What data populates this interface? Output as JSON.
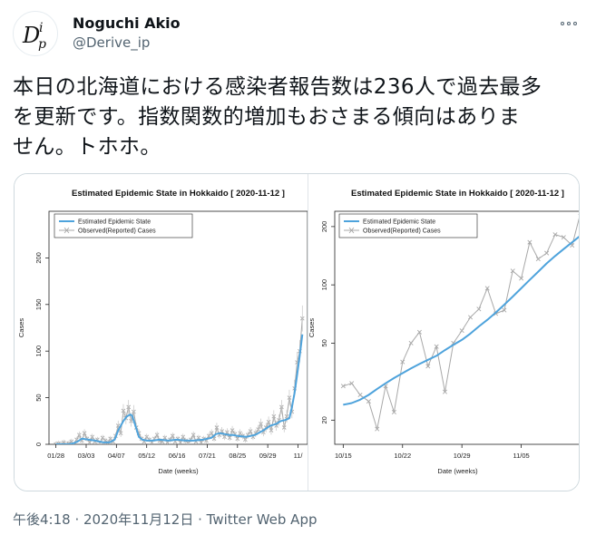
{
  "author": {
    "name": "Noguchi Akio",
    "handle": "@Derive_ip",
    "avatar_icon": "dp-logo-icon"
  },
  "tweet": {
    "text_line1": "本日の北海道における感染者報告数は236人で過去最多",
    "text_line2": "を更新です。指数関数的増加もおさまる傾向はありま",
    "text_line3": "せん。トホホ。"
  },
  "meta": {
    "time": "午後4:18",
    "sep1": " · ",
    "date": "2020年11月12日",
    "sep2": " · ",
    "source": "Twitter Web App"
  },
  "colors": {
    "estimated": "#4ea3dc",
    "observed": "#a8a8a8"
  },
  "chart_data": [
    {
      "type": "line",
      "title": "Estimated Epidemic State in Hokkaido [ 2020-11-12 ]",
      "xlabel": "Date (weeks)",
      "ylabel": "Cases",
      "y_scale": "linear",
      "ylim": [
        0,
        250
      ],
      "yticks": [
        0,
        50,
        100,
        150,
        200
      ],
      "xticks": [
        {
          "label": "01/28",
          "x": 0
        },
        {
          "label": "03/03",
          "x": 35
        },
        {
          "label": "04/07",
          "x": 70
        },
        {
          "label": "05/12",
          "x": 105
        },
        {
          "label": "06/16",
          "x": 140
        },
        {
          "label": "07/21",
          "x": 175
        },
        {
          "label": "08/25",
          "x": 210
        },
        {
          "label": "09/29",
          "x": 245
        },
        {
          "label": "11/",
          "x": 280
        }
      ],
      "xlim": [
        -8,
        291
      ],
      "legend": [
        "Estimated Epidemic State",
        "Observed(Reported) Cases"
      ],
      "legend_position": "top-left",
      "series": [
        {
          "name": "Estimated Epidemic State",
          "x": [
            0,
            8,
            15,
            20,
            25,
            30,
            38,
            45,
            50,
            55,
            62,
            68,
            72,
            78,
            82,
            86,
            88,
            92,
            96,
            100,
            105,
            112,
            120,
            130,
            140,
            150,
            160,
            170,
            180,
            185,
            190,
            195,
            200,
            205,
            210,
            220,
            230,
            240,
            248,
            255,
            260,
            265,
            270,
            273,
            276,
            279,
            282,
            285
          ],
          "y": [
            0,
            0,
            0,
            1,
            3,
            6,
            5,
            4,
            3,
            2,
            2,
            5,
            15,
            25,
            30,
            32,
            31,
            20,
            8,
            5,
            4,
            4,
            5,
            4,
            5,
            4,
            4,
            5,
            7,
            11,
            12,
            11,
            10,
            10,
            9,
            8,
            10,
            15,
            20,
            22,
            25,
            26,
            28,
            40,
            55,
            75,
            95,
            118
          ]
        },
        {
          "name": "Observed(Reported) Cases",
          "x": [
            0,
            3,
            6,
            9,
            12,
            15,
            18,
            21,
            24,
            27,
            30,
            33,
            36,
            39,
            42,
            45,
            48,
            51,
            54,
            57,
            60,
            63,
            66,
            69,
            72,
            75,
            78,
            81,
            84,
            87,
            90,
            93,
            96,
            99,
            102,
            105,
            108,
            111,
            114,
            117,
            120,
            123,
            126,
            129,
            132,
            135,
            138,
            141,
            144,
            147,
            150,
            153,
            156,
            159,
            162,
            165,
            168,
            171,
            174,
            177,
            180,
            183,
            186,
            189,
            192,
            195,
            198,
            201,
            204,
            207,
            210,
            213,
            216,
            219,
            222,
            225,
            228,
            231,
            234,
            237,
            240,
            243,
            246,
            249,
            252,
            255,
            258,
            261,
            264,
            267,
            270,
            273,
            276,
            279,
            282,
            285
          ],
          "y": [
            0,
            1,
            0,
            2,
            0,
            1,
            3,
            0,
            5,
            10,
            4,
            12,
            6,
            2,
            8,
            3,
            5,
            1,
            7,
            4,
            2,
            6,
            3,
            9,
            20,
            12,
            36,
            28,
            40,
            25,
            35,
            18,
            12,
            6,
            3,
            8,
            5,
            2,
            6,
            10,
            4,
            3,
            7,
            2,
            5,
            9,
            3,
            6,
            2,
            8,
            4,
            1,
            5,
            10,
            3,
            7,
            2,
            6,
            4,
            9,
            12,
            6,
            18,
            10,
            14,
            8,
            13,
            7,
            15,
            11,
            6,
            12,
            9,
            5,
            10,
            14,
            8,
            12,
            16,
            22,
            13,
            18,
            24,
            15,
            30,
            20,
            26,
            40,
            18,
            30,
            50,
            35,
            60,
            88,
            100,
            135
          ]
        }
      ]
    },
    {
      "type": "line",
      "title": "Estimated Epidemic State in Hokkaido [ 2020-11-12 ]",
      "xlabel": "Date (weeks)",
      "ylabel": "Cases",
      "y_scale": "log",
      "ylim": [
        15,
        240
      ],
      "yticks": [
        20,
        50,
        100,
        200
      ],
      "xticks": [
        {
          "label": "10/15",
          "x": 0
        },
        {
          "label": "10/22",
          "x": 7
        },
        {
          "label": "10/29",
          "x": 14
        },
        {
          "label": "11/05",
          "x": 21
        },
        {
          "label": "1",
          "x": 28
        }
      ],
      "xlim": [
        -1,
        28
      ],
      "legend": [
        "Estimated Epidemic State",
        "Observed(Reported) Cases"
      ],
      "legend_position": "top-left",
      "series": [
        {
          "name": "Estimated Epidemic State",
          "x": [
            0,
            1,
            2,
            3,
            4,
            5,
            6,
            7,
            8,
            9,
            10,
            11,
            12,
            13,
            14,
            15,
            16,
            17,
            18,
            19,
            20,
            21,
            22,
            23,
            24,
            25,
            26,
            27,
            28
          ],
          "y": [
            24,
            24.5,
            25.5,
            27,
            29,
            31,
            33,
            35,
            37,
            39,
            41,
            43,
            46,
            49,
            52,
            56,
            61,
            66,
            72,
            79,
            87,
            96,
            106,
            117,
            129,
            141,
            153,
            166,
            180
          ]
        },
        {
          "name": "Observed(Reported) Cases",
          "x": [
            0,
            1,
            2,
            3,
            4,
            5,
            6,
            7,
            8,
            9,
            10,
            11,
            12,
            13,
            14,
            15,
            16,
            17,
            18,
            19,
            20,
            21,
            22,
            23,
            24,
            25,
            26,
            27,
            28
          ],
          "y": [
            30,
            31,
            27,
            25,
            18,
            30,
            22,
            40,
            50,
            57,
            38,
            48,
            28,
            50,
            58,
            68,
            75,
            96,
            71,
            74,
            118,
            108,
            166,
            136,
            146,
            182,
            176,
            160,
            236
          ]
        }
      ]
    }
  ]
}
